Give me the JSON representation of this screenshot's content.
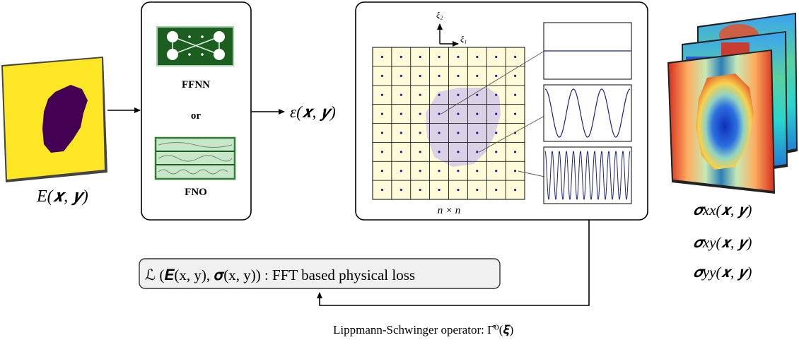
{
  "input": {
    "label": "E(𝒙, 𝒚)"
  },
  "model_box": {
    "ffnn_label": "FFNN",
    "or_label": "or",
    "fno_label": "FNO"
  },
  "strain": {
    "label": "ε(𝒙, 𝒚)"
  },
  "grid_box": {
    "axis_xi2": "ξ₂",
    "axis_xi1": "ξ₁",
    "size_label": "n × n"
  },
  "loss": {
    "formula": "ℒ (𝑬(x, y), 𝝈(x, y)) : FFT based physical loss"
  },
  "operator": {
    "label": "Lippmann-Schwinger operator: Γ̂⁰(𝝃)"
  },
  "outputs": {
    "sigma_xx": "𝝈xx(𝒙, 𝒚)",
    "sigma_xy": "𝝈xy(𝒙, 𝒚)",
    "sigma_yy": "𝝈yy(𝒙, 𝒚)"
  },
  "colors": {
    "yellow": "#fde725",
    "purple": "#440154",
    "grid_fill": "#fffbd8",
    "inclusion": "#d6cce8",
    "dot": "#1f1f8f",
    "wave": "#1a237e",
    "ffnn_green": "#1b5e20",
    "fno_green": "#a5d6a7",
    "loss_fill": "#f0f0f0"
  }
}
